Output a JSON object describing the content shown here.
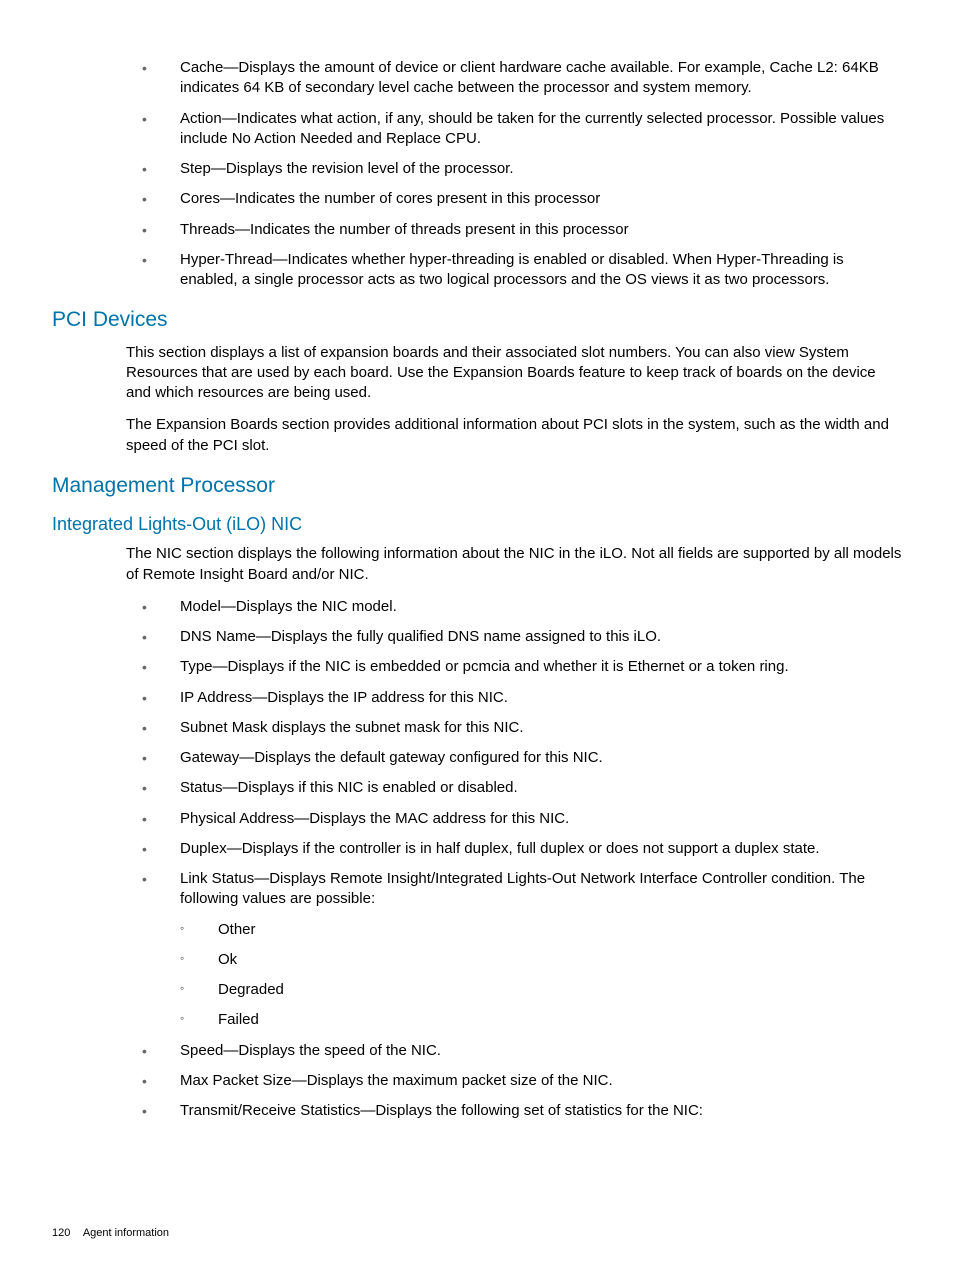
{
  "colors": {
    "heading": "#0073a8",
    "text": "#000000",
    "bullet": "#666666",
    "background": "#ffffff"
  },
  "typography": {
    "body_fontsize": 15,
    "h2_fontsize": 21,
    "h3_fontsize": 18,
    "footer_fontsize": 11,
    "line_height": 1.35
  },
  "lists": {
    "top_items": [
      "Cache—Displays the amount of device or client hardware cache available. For example, Cache L2: 64KB indicates 64 KB of secondary level cache between the processor and system memory.",
      "Action—Indicates what action, if any, should be taken for the currently selected processor. Possible values include No Action Needed and Replace CPU.",
      "Step—Displays the revision level of the processor.",
      "Cores—Indicates the number of cores present in this processor",
      "Threads—Indicates the number of threads present in this processor",
      "Hyper-Thread—Indicates whether hyper-threading is enabled or disabled. When Hyper-Threading is enabled, a single processor acts as two logical processors and the OS views it as two processors."
    ],
    "nic_items_pre": [
      "Model—Displays the NIC model.",
      "DNS Name—Displays the fully qualified DNS name assigned to this iLO.",
      "Type—Displays if the NIC is embedded or pcmcia and whether it is Ethernet or a token ring.",
      "IP Address—Displays the IP address for this NIC.",
      "Subnet Mask displays the subnet mask for this NIC.",
      "Gateway—Displays the default gateway configured for this NIC.",
      "Status—Displays if this NIC is enabled or disabled.",
      "Physical Address—Displays the MAC address for this NIC.",
      "Duplex—Displays if the controller is in half duplex, full duplex or does not support a duplex state."
    ],
    "link_status_text": "Link Status—Displays Remote Insight/Integrated Lights-Out Network Interface Controller condition. The following values are possible:",
    "link_status_values": [
      "Other",
      "Ok",
      "Degraded",
      "Failed"
    ],
    "nic_items_post": [
      "Speed—Displays the speed of the NIC.",
      "Max Packet Size—Displays the maximum packet size of the NIC.",
      "Transmit/Receive Statistics—Displays the following set of statistics for the NIC:"
    ]
  },
  "sections": {
    "pci_title": "PCI Devices",
    "pci_p1": "This section displays a list of expansion boards and their associated slot numbers. You can also view System Resources that are used by each board. Use the Expansion Boards feature to keep track of boards on the device and which resources are being used.",
    "pci_p2": "The Expansion Boards section provides additional information about PCI slots in the system, such as the width and speed of the PCI slot.",
    "mgmt_title": "Management Processor",
    "ilo_title": "Integrated Lights-Out (iLO) NIC",
    "ilo_intro": "The NIC section displays the following information about the NIC in the iLO. Not all fields are supported by all models of Remote Insight Board and/or NIC."
  },
  "footer": {
    "page_number": "120",
    "section_label": "Agent information"
  }
}
